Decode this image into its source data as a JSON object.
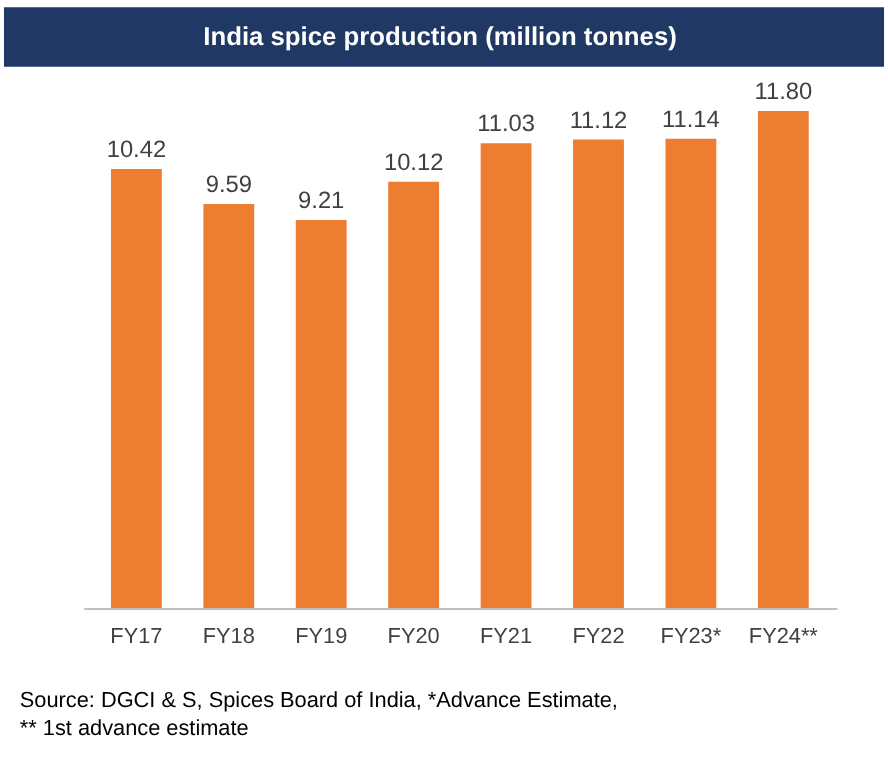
{
  "chart_data": {
    "type": "bar",
    "title": "India spice production (million tonnes)",
    "categories": [
      "FY17",
      "FY18",
      "FY19",
      "FY20",
      "FY21",
      "FY22",
      "FY23*",
      "FY24**"
    ],
    "values": [
      10.42,
      9.59,
      9.21,
      10.12,
      11.03,
      11.12,
      11.14,
      11.8
    ],
    "value_labels": [
      "10.42",
      "9.59",
      "9.21",
      "10.12",
      "11.03",
      "11.12",
      "11.14",
      "11.80"
    ],
    "color": "#ed7d31",
    "grid": false,
    "tick_labels": "x",
    "annotations": [
      "Source: DGCI & S, Spices Board of India, *Advance Estimate,",
      "** 1st advance estimate"
    ]
  }
}
